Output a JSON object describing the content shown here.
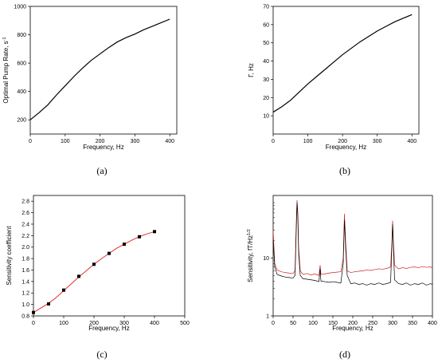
{
  "chart_data": [
    {
      "panel": "(a)",
      "type": "line",
      "xlabel": "Frequency, Hz",
      "ylabel": "Optimal Pump Rate, s",
      "ylabel_sup": "-1",
      "xlim": [
        0,
        420
      ],
      "ylim": [
        100,
        1000
      ],
      "xticks": [
        0,
        100,
        200,
        300,
        400
      ],
      "yticks": [
        200,
        400,
        600,
        800,
        1000
      ],
      "series": [
        {
          "color": "#000000",
          "x": [
            0,
            25,
            50,
            75,
            100,
            125,
            150,
            175,
            200,
            225,
            250,
            275,
            300,
            325,
            350,
            375,
            400
          ],
          "y": [
            200,
            250,
            305,
            375,
            440,
            505,
            565,
            620,
            665,
            710,
            750,
            780,
            805,
            835,
            860,
            885,
            910
          ]
        }
      ]
    },
    {
      "panel": "(b)",
      "type": "line",
      "xlabel": "Frequency, Hz",
      "ylabel": "Γ, Hz",
      "xlim": [
        0,
        420
      ],
      "ylim": [
        0,
        70
      ],
      "xticks": [
        0,
        100,
        200,
        300,
        400
      ],
      "yticks": [
        10,
        20,
        30,
        40,
        50,
        60,
        70
      ],
      "series": [
        {
          "color": "#000000",
          "x": [
            0,
            25,
            50,
            75,
            100,
            125,
            150,
            175,
            200,
            225,
            250,
            275,
            300,
            325,
            350,
            375,
            400
          ],
          "y": [
            12,
            15,
            18.5,
            23,
            27.5,
            31.5,
            35.5,
            39.5,
            43.5,
            47,
            50.5,
            53.5,
            56.5,
            59,
            61.5,
            63.5,
            65.5
          ]
        }
      ]
    },
    {
      "panel": "(c)",
      "type": "scatter",
      "xlabel": "Frequency, Hz",
      "ylabel": "Sensitivity coefficient",
      "xlim": [
        0,
        500
      ],
      "ylim": [
        0.8,
        2.9
      ],
      "xticks": [
        0,
        100,
        200,
        300,
        400,
        500
      ],
      "yticks": [
        0.8,
        1.0,
        1.2,
        1.4,
        1.6,
        1.8,
        2.0,
        2.2,
        2.4,
        2.6,
        2.8
      ],
      "points": {
        "color": "#000000",
        "x": [
          0,
          50,
          100,
          150,
          200,
          250,
          300,
          350,
          400
        ],
        "y": [
          0.86,
          1.01,
          1.25,
          1.49,
          1.7,
          1.89,
          2.05,
          2.18,
          2.27
        ]
      },
      "fit": {
        "color": "#e03030",
        "x": [
          0,
          25,
          50,
          75,
          100,
          125,
          150,
          175,
          200,
          225,
          250,
          275,
          300,
          325,
          350,
          375,
          400
        ],
        "y": [
          0.86,
          0.94,
          1.02,
          1.12,
          1.24,
          1.36,
          1.48,
          1.59,
          1.7,
          1.8,
          1.89,
          1.98,
          2.05,
          2.12,
          2.18,
          2.23,
          2.27
        ]
      }
    },
    {
      "panel": "(d)",
      "type": "line",
      "xlabel": "Frequency, Hz",
      "ylabel": "Sensitivity, fT/Hz",
      "ylabel_sup": "1/2",
      "xlim": [
        0,
        400
      ],
      "ylim": [
        1,
        120
      ],
      "yscale": "log",
      "xticks": [
        0,
        50,
        100,
        150,
        200,
        250,
        300,
        350,
        400
      ],
      "yticks": [
        1,
        10
      ],
      "series": [
        {
          "color": "#d02020",
          "points": [
            [
              0,
              30
            ],
            [
              4,
              8
            ],
            [
              10,
              6.2
            ],
            [
              20,
              5.8
            ],
            [
              30,
              5.6
            ],
            [
              40,
              5.5
            ],
            [
              50,
              5.4
            ],
            [
              55,
              6
            ],
            [
              58,
              40
            ],
            [
              60,
              100
            ],
            [
              62,
              60
            ],
            [
              64,
              15
            ],
            [
              68,
              6
            ],
            [
              75,
              5.2
            ],
            [
              85,
              5.4
            ],
            [
              95,
              5.1
            ],
            [
              105,
              5.3
            ],
            [
              115,
              5.0
            ],
            [
              118,
              7.5
            ],
            [
              120,
              5.2
            ],
            [
              130,
              5.3
            ],
            [
              140,
              5.5
            ],
            [
              150,
              5.6
            ],
            [
              160,
              5.7
            ],
            [
              170,
              5.8
            ],
            [
              176,
              10
            ],
            [
              179,
              58
            ],
            [
              182,
              20
            ],
            [
              186,
              6
            ],
            [
              195,
              5.6
            ],
            [
              205,
              5.8
            ],
            [
              215,
              5.9
            ],
            [
              225,
              6.0
            ],
            [
              235,
              6.2
            ],
            [
              245,
              6.1
            ],
            [
              255,
              6.3
            ],
            [
              265,
              6.5
            ],
            [
              275,
              6.4
            ],
            [
              285,
              6.6
            ],
            [
              295,
              7
            ],
            [
              298,
              18
            ],
            [
              300,
              44
            ],
            [
              302,
              20
            ],
            [
              305,
              7.5
            ],
            [
              315,
              6.5
            ],
            [
              325,
              6.8
            ],
            [
              335,
              6.6
            ],
            [
              345,
              6.9
            ],
            [
              355,
              7.0
            ],
            [
              365,
              6.8
            ],
            [
              375,
              7.1
            ],
            [
              385,
              6.9
            ],
            [
              395,
              7.0
            ],
            [
              400,
              6.8
            ]
          ]
        },
        {
          "color": "#000000",
          "points": [
            [
              0,
              20
            ],
            [
              4,
              7
            ],
            [
              10,
              5.2
            ],
            [
              20,
              4.9
            ],
            [
              30,
              4.7
            ],
            [
              40,
              4.6
            ],
            [
              50,
              4.5
            ],
            [
              55,
              5
            ],
            [
              58,
              30
            ],
            [
              60,
              90
            ],
            [
              62,
              50
            ],
            [
              64,
              12
            ],
            [
              68,
              5
            ],
            [
              75,
              4.4
            ],
            [
              85,
              4.3
            ],
            [
              95,
              4.2
            ],
            [
              105,
              4.1
            ],
            [
              115,
              3.9
            ],
            [
              118,
              6.5
            ],
            [
              120,
              4.0
            ],
            [
              130,
              3.9
            ],
            [
              140,
              3.8
            ],
            [
              150,
              3.9
            ],
            [
              160,
              3.8
            ],
            [
              170,
              3.7
            ],
            [
              176,
              8
            ],
            [
              179,
              45
            ],
            [
              182,
              15
            ],
            [
              186,
              5
            ],
            [
              195,
              3.6
            ],
            [
              205,
              3.7
            ],
            [
              215,
              3.5
            ],
            [
              225,
              3.6
            ],
            [
              235,
              3.4
            ],
            [
              245,
              3.6
            ],
            [
              255,
              3.5
            ],
            [
              265,
              3.7
            ],
            [
              275,
              3.5
            ],
            [
              285,
              3.6
            ],
            [
              295,
              3.8
            ],
            [
              298,
              15
            ],
            [
              300,
              38
            ],
            [
              302,
              15
            ],
            [
              305,
              4.2
            ],
            [
              315,
              3.6
            ],
            [
              325,
              3.5
            ],
            [
              335,
              3.7
            ],
            [
              345,
              3.4
            ],
            [
              355,
              3.6
            ],
            [
              365,
              3.5
            ],
            [
              375,
              3.7
            ],
            [
              385,
              3.4
            ],
            [
              395,
              3.6
            ],
            [
              400,
              3.5
            ]
          ]
        }
      ]
    }
  ]
}
